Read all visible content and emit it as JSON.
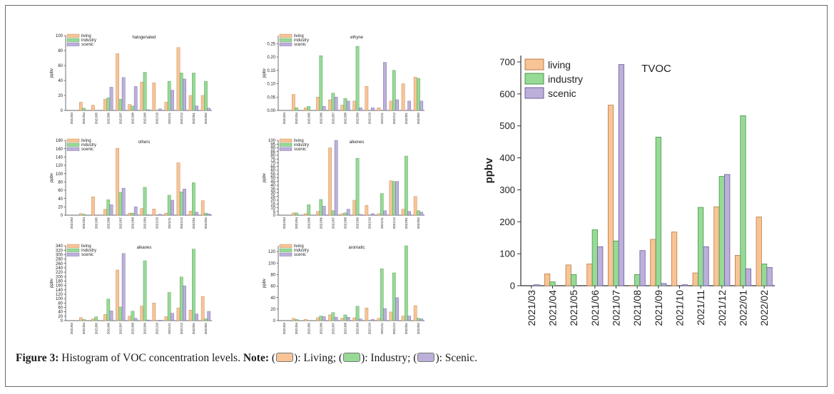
{
  "figure": {
    "caption_label": "Figure 3:",
    "caption_text": "Histogram of VOC concentration levels.",
    "note_label": "Note:",
    "note_living": "): Living; (",
    "note_industry": "): Industry; (",
    "note_scenic": "): Scenic.",
    "open_paren": "("
  },
  "colors": {
    "living": "#f8c496",
    "living_stroke": "#b97c46",
    "industry": "#96da96",
    "industry_stroke": "#4a944a",
    "scenic": "#bcb0da",
    "scenic_stroke": "#6e5e9e"
  },
  "chart_data": [
    {
      "type": "bar",
      "title": "halogenated",
      "ylabel": "ppbv",
      "ylim": [
        0,
        100
      ],
      "yticks": [
        0,
        20,
        40,
        60,
        80,
        100
      ],
      "categories": [
        "2021/03",
        "2021/04",
        "2021/05",
        "2021/06",
        "2021/07",
        "2021/08",
        "2021/09",
        "2021/10",
        "2021/11",
        "2021/12",
        "2022/01",
        "2022/02"
      ],
      "legend": [
        "living",
        "industry",
        "scenic"
      ],
      "series": [
        {
          "name": "living",
          "values": [
            0,
            11,
            7,
            15,
            76,
            8,
            38,
            37,
            11,
            84,
            20,
            20
          ]
        },
        {
          "name": "industry",
          "values": [
            0,
            3,
            0,
            17,
            15,
            6,
            51,
            0,
            39,
            50,
            50,
            39
          ]
        },
        {
          "name": "scenic",
          "values": [
            0,
            0,
            0,
            31,
            44,
            32,
            1,
            2,
            27,
            42,
            6,
            3
          ]
        }
      ]
    },
    {
      "type": "bar",
      "title": "ethyne",
      "ylabel": "ppbv",
      "ylim": [
        0,
        0.28
      ],
      "yticks": [
        0,
        0.05,
        0.1,
        0.15,
        0.2,
        0.25
      ],
      "ytick_labels": [
        "0.00",
        "0.05",
        "0.10",
        "0.15",
        "0.20",
        "0.25"
      ],
      "categories": [
        "2021/03",
        "2021/04",
        "2021/05",
        "2021/06",
        "2021/07",
        "2021/08",
        "2021/09",
        "2021/10",
        "2021/11",
        "2021/12",
        "2022/01",
        "2022/02"
      ],
      "legend": [
        "living",
        "industry",
        "scenic"
      ],
      "series": [
        {
          "name": "living",
          "values": [
            0,
            0.06,
            0.01,
            0.05,
            0.04,
            0.02,
            0.035,
            0.09,
            0.01,
            0.035,
            0.1,
            0.125
          ]
        },
        {
          "name": "industry",
          "values": [
            0,
            0.01,
            0.015,
            0.205,
            0.065,
            0.045,
            0.24,
            0.0,
            0.0,
            0.15,
            0.0,
            0.12
          ]
        },
        {
          "name": "scenic",
          "values": [
            0,
            0,
            0,
            0.015,
            0.05,
            0.035,
            0.01,
            0.01,
            0.18,
            0.04,
            0.035,
            0.035
          ]
        }
      ]
    },
    {
      "type": "bar",
      "title": "others",
      "ylabel": "ppbv",
      "ylim": [
        0,
        180
      ],
      "yticks": [
        0,
        20,
        40,
        60,
        80,
        100,
        120,
        140,
        160,
        180
      ],
      "categories": [
        "2021/03",
        "2021/04",
        "2021/05",
        "2021/06",
        "2021/07",
        "2021/08",
        "2021/09",
        "2021/10",
        "2021/11",
        "2021/12",
        "2022/01",
        "2022/02"
      ],
      "legend": [
        "living",
        "industry",
        "scenic"
      ],
      "series": [
        {
          "name": "living",
          "values": [
            0,
            4,
            44,
            14,
            161,
            5,
            16,
            15,
            5,
            126,
            10,
            35
          ]
        },
        {
          "name": "industry",
          "values": [
            0,
            2,
            0,
            37,
            55,
            5,
            67,
            0,
            48,
            56,
            78,
            5
          ]
        },
        {
          "name": "scenic",
          "values": [
            0,
            0,
            0,
            25,
            65,
            20,
            1,
            2,
            36,
            63,
            7,
            3
          ]
        }
      ]
    },
    {
      "type": "bar",
      "title": "alkenes",
      "ylabel": "ppbv",
      "ylim": [
        0,
        100
      ],
      "yticks": [
        0,
        5,
        10,
        15,
        20,
        25,
        30,
        35,
        40,
        45,
        50,
        55,
        60,
        65,
        70,
        75,
        80,
        85,
        90,
        95,
        100
      ],
      "categories": [
        "2021/03",
        "2021/04",
        "2021/05",
        "2021/06",
        "2021/07",
        "2021/08",
        "2021/09",
        "2021/10",
        "2021/11",
        "2021/12",
        "2022/01",
        "2022/02"
      ],
      "legend": [
        "living",
        "industry",
        "scenic"
      ],
      "series": [
        {
          "name": "living",
          "values": [
            0,
            3,
            2,
            5,
            90,
            2,
            20,
            13,
            2,
            46,
            8,
            25
          ]
        },
        {
          "name": "industry",
          "values": [
            0,
            3,
            14,
            21,
            6,
            3,
            76,
            0,
            29,
            45,
            79,
            6
          ]
        },
        {
          "name": "scenic",
          "values": [
            0,
            0,
            0,
            12,
            100,
            8,
            1,
            2,
            6,
            45,
            5,
            4
          ]
        }
      ]
    },
    {
      "type": "bar",
      "title": "alkanes",
      "ylabel": "ppbv",
      "ylim": [
        0,
        340
      ],
      "yticks": [
        0,
        20,
        40,
        60,
        80,
        100,
        120,
        140,
        160,
        180,
        200,
        220,
        240,
        260,
        280,
        300,
        320,
        340
      ],
      "categories": [
        "2021/03",
        "2021/04",
        "2021/05",
        "2021/06",
        "2021/07",
        "2021/08",
        "2021/09",
        "2021/10",
        "2021/11",
        "2021/12",
        "2022/01",
        "2022/02"
      ],
      "legend": [
        "living",
        "industry",
        "scenic"
      ],
      "series": [
        {
          "name": "living",
          "values": [
            0,
            14,
            8,
            28,
            230,
            20,
            66,
            80,
            18,
            58,
            48,
            110
          ]
        },
        {
          "name": "industry",
          "values": [
            0,
            5,
            17,
            98,
            62,
            43,
            272,
            0,
            128,
            198,
            325,
            8
          ]
        },
        {
          "name": "scenic",
          "values": [
            0,
            0,
            0,
            44,
            305,
            10,
            3,
            2,
            33,
            158,
            30,
            42
          ]
        }
      ]
    },
    {
      "type": "bar",
      "title": "aromatic",
      "ylabel": "ppbv",
      "ylim": [
        0,
        130
      ],
      "yticks": [
        0,
        20,
        40,
        60,
        80,
        100,
        120
      ],
      "categories": [
        "2021/03",
        "2021/04",
        "2021/05",
        "2021/06",
        "2021/07",
        "2021/08",
        "2021/09",
        "2021/10",
        "2021/11",
        "2021/12",
        "2022/01",
        "2022/02"
      ],
      "legend": [
        "living",
        "industry",
        "scenic"
      ],
      "series": [
        {
          "name": "living",
          "values": [
            0,
            4,
            2,
            5,
            10,
            4,
            5,
            22,
            4,
            15,
            8,
            26
          ]
        },
        {
          "name": "industry",
          "values": [
            0,
            2,
            0,
            8,
            14,
            10,
            25,
            0,
            90,
            83,
            130,
            4
          ]
        },
        {
          "name": "scenic",
          "values": [
            0,
            0,
            0,
            7,
            6,
            6,
            3,
            2,
            21,
            40,
            8,
            3
          ]
        }
      ]
    },
    {
      "type": "bar",
      "title": "TVOC",
      "ylabel": "ppbv",
      "ylim": [
        0,
        720
      ],
      "yticks": [
        0,
        100,
        200,
        300,
        400,
        500,
        600,
        700
      ],
      "categories": [
        "2021/03",
        "2021/04",
        "2021/05",
        "2021/06",
        "2021/07",
        "2021/08",
        "2021/09",
        "2021/10",
        "2021/11",
        "2021/12",
        "2022/01",
        "2022/02"
      ],
      "legend": [
        "living",
        "industry",
        "scenic"
      ],
      "series": [
        {
          "name": "living",
          "values": [
            0,
            37,
            65,
            68,
            565,
            1,
            145,
            168,
            40,
            247,
            95,
            215
          ]
        },
        {
          "name": "industry",
          "values": [
            0,
            12,
            35,
            175,
            140,
            35,
            465,
            0,
            245,
            342,
            532,
            68
          ]
        },
        {
          "name": "scenic",
          "values": [
            3,
            0,
            0,
            122,
            692,
            110,
            7,
            3,
            122,
            348,
            53,
            57
          ]
        }
      ]
    }
  ]
}
